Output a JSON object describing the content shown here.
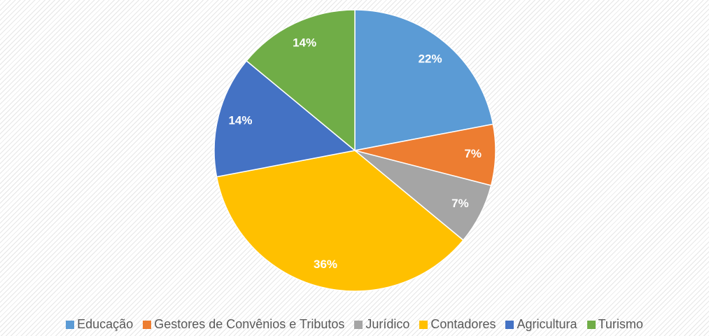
{
  "chart_data": {
    "type": "pie",
    "categories": [
      "Educação",
      "Gestores de Convênios e Tributos",
      "Jurídico",
      "Contadores",
      "Agricultura",
      "Turismo"
    ],
    "values": [
      22,
      7,
      7,
      36,
      14,
      14
    ],
    "value_labels": [
      "22%",
      "7%",
      "7%",
      "36%",
      "14%",
      "14%"
    ],
    "colors": [
      "#5b9bd5",
      "#ed7d31",
      "#a5a5a5",
      "#ffc000",
      "#4472c4",
      "#70ad47"
    ],
    "legend": "bottom"
  }
}
